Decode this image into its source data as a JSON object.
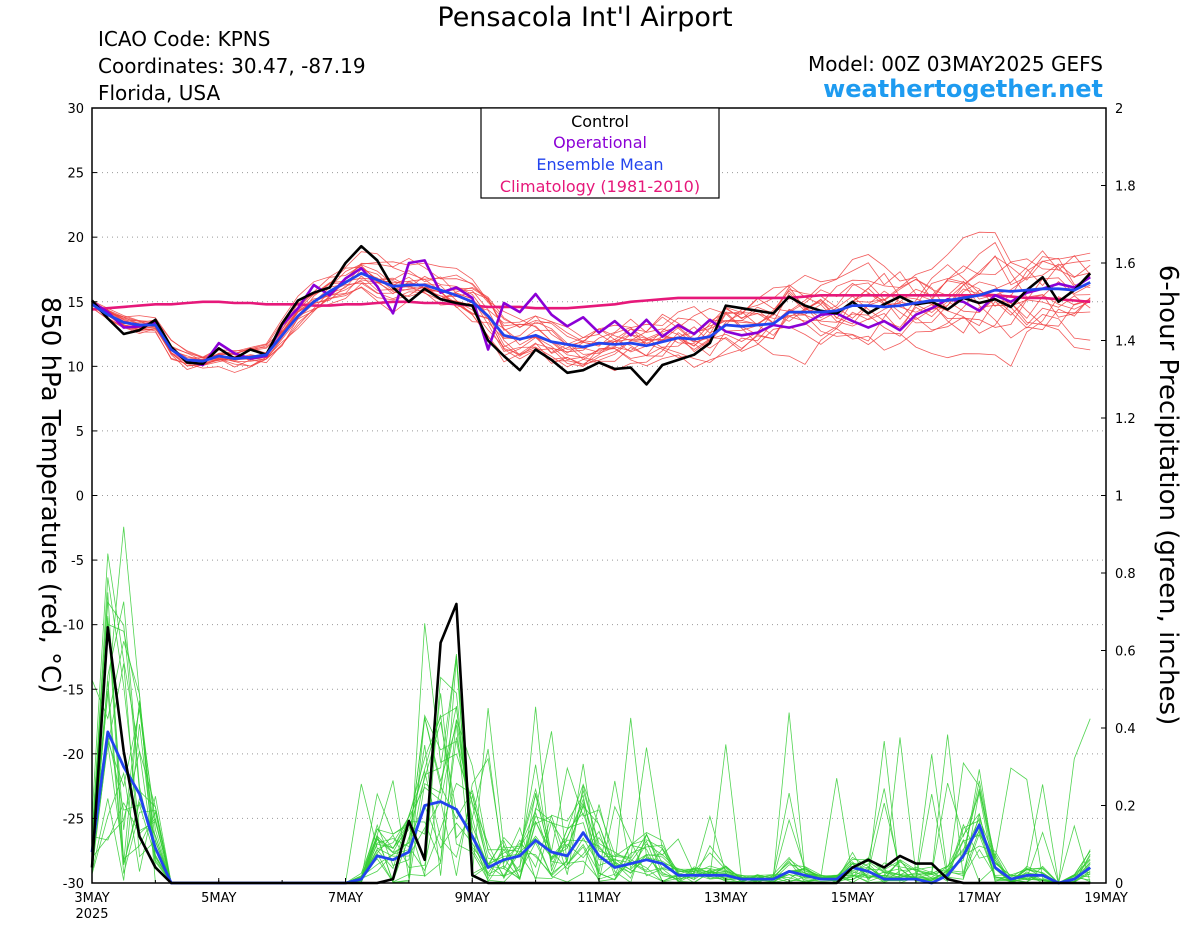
{
  "header": {
    "title": "Pensacola Int'l Airport",
    "icao": "ICAO Code: KPNS",
    "coords": "Coordinates: 30.47, -87.19",
    "region": "Florida, USA",
    "model": "Model: 00Z 03MAY2025 GEFS",
    "site": "weathertogether.net"
  },
  "colors": {
    "control": "#000000",
    "operational": "#8b00d6",
    "ensemble_mean": "#2244ee",
    "climatology": "#e6187a",
    "temperature_members": "#f04040",
    "precip_members": "#33cc33",
    "site": "#1e9bf0"
  },
  "chart_data": {
    "type": "line",
    "title": "Pensacola Int'l Airport",
    "ylabel_left": "850 hPa Temperature (red, °C)",
    "ylabel_right": "6-hour Precipitation (green, inches)",
    "ylim_left": [
      -30,
      30
    ],
    "ylim_right": [
      0,
      2
    ],
    "grid": "horizontal dotted",
    "legend_placement": "top-center",
    "legend": [
      "Control",
      "Operational",
      "Ensemble Mean",
      "Climatology (1981-2010)"
    ],
    "x_start": "2025-05-03T00",
    "x_step_hours": 6,
    "x_ticks": [
      "3MAY",
      "5MAY",
      "7MAY",
      "9MAY",
      "11MAY",
      "13MAY",
      "15MAY",
      "17MAY",
      "19MAY"
    ],
    "x_tick_year": "2025",
    "y_ticks_left": [
      30,
      25,
      20,
      15,
      10,
      5,
      0,
      -5,
      -10,
      -15,
      -20,
      -25,
      -30
    ],
    "y_ticks_right": [
      "2",
      "1.8",
      "1.6",
      "1.4",
      "1.2",
      "1",
      "0.8",
      "0.6",
      "0.4",
      "0.2",
      "0"
    ],
    "series": [
      {
        "name": "Control",
        "axis": "left",
        "values": [
          15.1,
          13.7,
          12.5,
          12.8,
          13.6,
          11.5,
          10.3,
          10.2,
          11.4,
          10.6,
          11.3,
          10.9,
          13.3,
          15.1,
          15.7,
          16.1,
          18,
          19.3,
          18.2,
          16.1,
          15,
          16,
          15.2,
          14.9,
          14.7,
          12,
          10.8,
          9.7,
          11.3,
          10.5,
          9.5,
          9.7,
          10.3,
          9.8,
          9.9,
          8.6,
          10.1,
          10.5,
          10.9,
          11.8,
          14.7,
          14.5,
          14.3,
          14.1,
          15.4,
          14.7,
          14.3,
          14.1,
          15,
          14.1,
          14.8,
          15.4,
          14.8,
          15,
          14.4,
          15.3,
          14.9,
          15.2,
          14.6,
          15.9,
          16.9,
          15,
          15.9,
          17.2
        ]
      },
      {
        "name": "Operational",
        "axis": "left",
        "values": [
          15,
          14.2,
          13,
          13.1,
          13.4,
          11.3,
          10.4,
          10.1,
          11.8,
          11,
          10.6,
          10.8,
          13.2,
          14.5,
          16.3,
          15.5,
          16.8,
          17.6,
          16.2,
          14.1,
          18,
          18.2,
          15.7,
          16.1,
          15.3,
          11.3,
          14.9,
          14.2,
          15.6,
          14,
          13.1,
          13.8,
          12.6,
          13.5,
          12.4,
          13.6,
          12.3,
          13.2,
          12.5,
          13.6,
          12.7,
          12.4,
          12.6,
          13.2,
          13,
          13.3,
          14,
          14.1,
          13.5,
          13,
          13.5,
          12.8,
          14,
          14.5,
          15.2,
          15,
          14.3,
          15.5,
          15,
          15.7,
          16,
          16.4,
          16.1,
          16.9
        ]
      },
      {
        "name": "Ensemble Mean",
        "axis": "left",
        "values": [
          14.8,
          14,
          13.4,
          13.2,
          13.2,
          11.3,
          10.5,
          10.4,
          10.8,
          10.6,
          10.7,
          10.9,
          12.4,
          13.9,
          15,
          15.8,
          16.5,
          17.2,
          16.7,
          16.2,
          16.3,
          16.3,
          15.9,
          15.5,
          15,
          13.9,
          12.4,
          12.1,
          12.4,
          11.9,
          11.7,
          11.5,
          11.8,
          11.7,
          11.8,
          11.6,
          11.9,
          12.2,
          12.1,
          12.3,
          13.2,
          13.1,
          13.2,
          13.3,
          14.2,
          14.2,
          14.2,
          14.3,
          14.7,
          14.7,
          14.6,
          14.7,
          14.9,
          15.1,
          15.1,
          15.3,
          15.5,
          15.9,
          15.8,
          15.9,
          16,
          16,
          15.9,
          16.5
        ]
      },
      {
        "name": "Climatology (1981-2010)",
        "axis": "left",
        "values": [
          14.4,
          14.5,
          14.6,
          14.7,
          14.8,
          14.8,
          14.9,
          15,
          15,
          14.9,
          14.9,
          14.8,
          14.8,
          14.8,
          14.7,
          14.7,
          14.8,
          14.8,
          14.9,
          15,
          15,
          14.9,
          14.9,
          14.8,
          14.7,
          14.6,
          14.6,
          14.6,
          14.5,
          14.5,
          14.5,
          14.6,
          14.7,
          14.8,
          15,
          15.1,
          15.2,
          15.3,
          15.3,
          15.3,
          15.3,
          15.3,
          15.3,
          15.3,
          15.3,
          15.4,
          15.5,
          15.5,
          15.5,
          15.5,
          15.5,
          15.5,
          15.5,
          15.5,
          15.5,
          15.5,
          15.5,
          15.5,
          15.4,
          15.3,
          15.3,
          15.2,
          15.1,
          15
        ]
      },
      {
        "name": "Control",
        "axis": "right",
        "values": [
          0.04,
          0.66,
          0.34,
          0.12,
          0.04,
          0,
          0,
          0,
          0,
          0,
          0,
          0,
          0,
          0,
          0,
          0,
          0,
          0,
          0,
          0.01,
          0.16,
          0.06,
          0.62,
          0.72,
          0.02,
          0,
          0,
          0,
          0,
          0,
          0,
          0,
          0,
          0,
          0,
          0,
          0,
          0,
          0,
          0,
          0,
          0,
          0,
          0,
          0,
          0,
          0,
          0,
          0.04,
          0.06,
          0.04,
          0.07,
          0.05,
          0.05,
          0.01,
          0,
          0,
          0,
          0,
          0,
          0,
          0,
          0,
          0
        ]
      },
      {
        "name": "Ensemble Mean",
        "axis": "right",
        "values": [
          0.08,
          0.39,
          0.3,
          0.23,
          0.09,
          0,
          0,
          0,
          0,
          0,
          0,
          0,
          0,
          0,
          0,
          0,
          0,
          0.01,
          0.07,
          0.06,
          0.08,
          0.2,
          0.21,
          0.19,
          0.12,
          0.04,
          0.06,
          0.07,
          0.11,
          0.08,
          0.07,
          0.13,
          0.07,
          0.04,
          0.05,
          0.06,
          0.05,
          0.02,
          0.02,
          0.02,
          0.02,
          0.01,
          0.01,
          0.01,
          0.03,
          0.02,
          0.01,
          0.01,
          0.04,
          0.03,
          0.01,
          0.01,
          0.01,
          0,
          0.02,
          0.07,
          0.15,
          0.04,
          0.01,
          0.02,
          0.02,
          0,
          0.01,
          0.04
        ]
      }
    ]
  }
}
